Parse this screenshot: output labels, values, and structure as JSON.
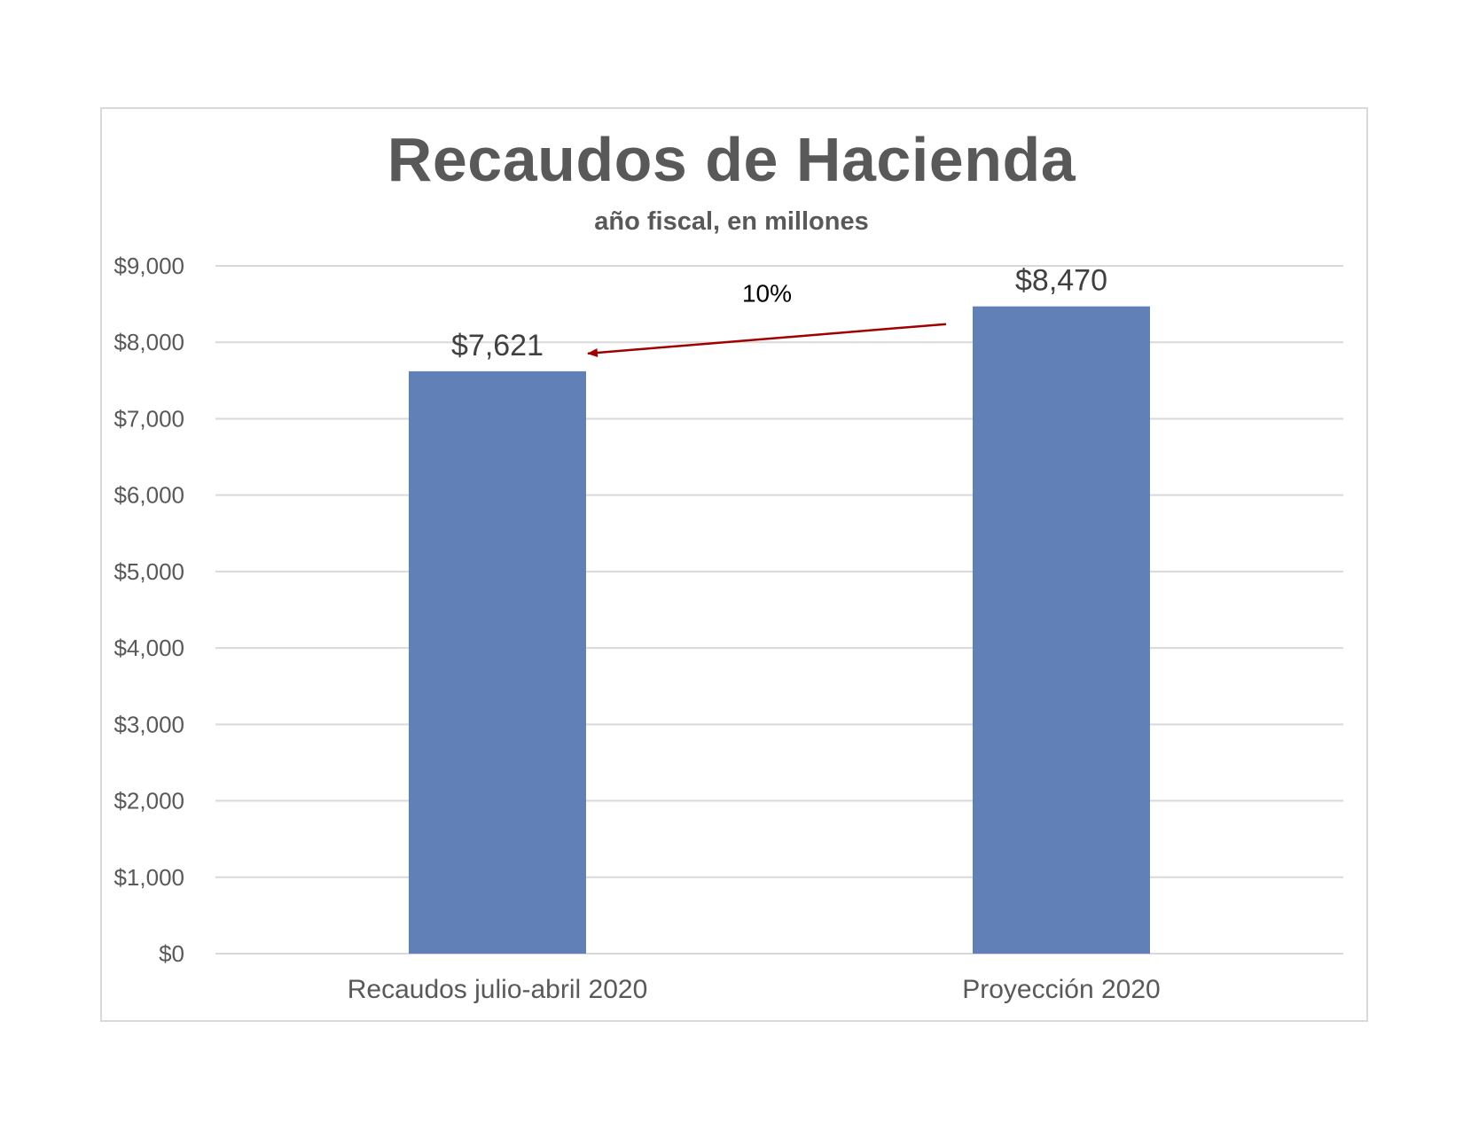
{
  "chart_data": {
    "type": "bar",
    "title": "Recaudos de Hacienda",
    "subtitle": "año fiscal, en millones",
    "categories": [
      "Recaudos julio-abril 2020",
      "Proyección 2020"
    ],
    "values": [
      7621,
      8470
    ],
    "value_labels": [
      "$7,621",
      "$8,470"
    ],
    "ylim": [
      0,
      9000
    ],
    "yticks": [
      0,
      1000,
      2000,
      3000,
      4000,
      5000,
      6000,
      7000,
      8000,
      9000
    ],
    "ytick_labels": [
      "$0",
      "$1,000",
      "$2,000",
      "$3,000",
      "$4,000",
      "$5,000",
      "$6,000",
      "$7,000",
      "$8,000",
      "$9,000"
    ],
    "grid": true,
    "legend": "none",
    "bar_color": "#6280b8",
    "annotation": {
      "text": "10%",
      "arrow_color": "#a00000",
      "from_category": "Proyección 2020",
      "to_category": "Recaudos julio-abril 2020"
    }
  }
}
